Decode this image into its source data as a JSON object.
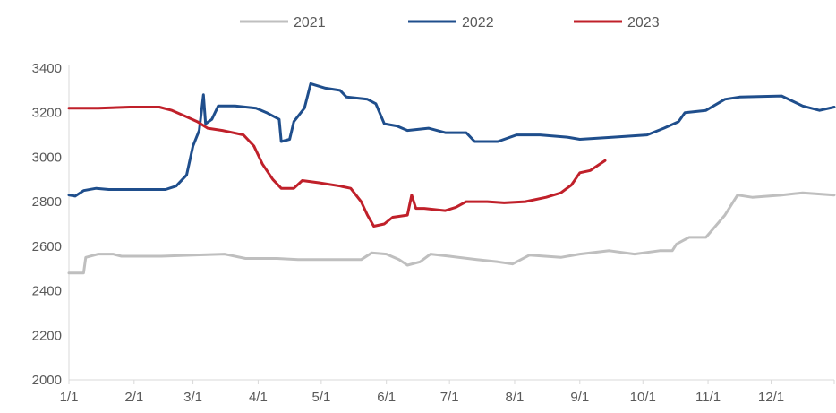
{
  "chart_data": {
    "type": "line",
    "title": "",
    "xlabel": "",
    "ylabel": "",
    "ylim": [
      2000,
      3400
    ],
    "yticks": [
      2000,
      2200,
      2400,
      2600,
      2800,
      3000,
      3200,
      3400
    ],
    "xlim": [
      "1/1",
      "12/31"
    ],
    "xticks": [
      {
        "label": "1/1",
        "day": 1
      },
      {
        "label": "2/1",
        "day": 32
      },
      {
        "label": "3/1",
        "day": 60
      },
      {
        "label": "4/1",
        "day": 91
      },
      {
        "label": "5/1",
        "day": 121
      },
      {
        "label": "6/1",
        "day": 152
      },
      {
        "label": "7/1",
        "day": 182
      },
      {
        "label": "8/1",
        "day": 213
      },
      {
        "label": "9/1",
        "day": 244
      },
      {
        "label": "10/1",
        "day": 274
      },
      {
        "label": "11/1",
        "day": 305
      },
      {
        "label": "12/1",
        "day": 335
      }
    ],
    "grid": false,
    "legend_position": "top-center",
    "series": [
      {
        "name": "2021",
        "color": "#bfbfbf",
        "points": [
          {
            "day": 1,
            "value": 2480
          },
          {
            "day": 8,
            "value": 2480
          },
          {
            "day": 9,
            "value": 2550
          },
          {
            "day": 15,
            "value": 2565
          },
          {
            "day": 22,
            "value": 2565
          },
          {
            "day": 26,
            "value": 2555
          },
          {
            "day": 45,
            "value": 2555
          },
          {
            "day": 60,
            "value": 2560
          },
          {
            "day": 75,
            "value": 2565
          },
          {
            "day": 85,
            "value": 2545
          },
          {
            "day": 100,
            "value": 2545
          },
          {
            "day": 110,
            "value": 2540
          },
          {
            "day": 125,
            "value": 2540
          },
          {
            "day": 140,
            "value": 2540
          },
          {
            "day": 145,
            "value": 2570
          },
          {
            "day": 152,
            "value": 2565
          },
          {
            "day": 158,
            "value": 2540
          },
          {
            "day": 162,
            "value": 2515
          },
          {
            "day": 168,
            "value": 2530
          },
          {
            "day": 173,
            "value": 2565
          },
          {
            "day": 182,
            "value": 2555
          },
          {
            "day": 195,
            "value": 2540
          },
          {
            "day": 205,
            "value": 2530
          },
          {
            "day": 212,
            "value": 2520
          },
          {
            "day": 220,
            "value": 2560
          },
          {
            "day": 235,
            "value": 2550
          },
          {
            "day": 244,
            "value": 2565
          },
          {
            "day": 258,
            "value": 2580
          },
          {
            "day": 270,
            "value": 2565
          },
          {
            "day": 282,
            "value": 2580
          },
          {
            "day": 288,
            "value": 2580
          },
          {
            "day": 290,
            "value": 2610
          },
          {
            "day": 296,
            "value": 2640
          },
          {
            "day": 304,
            "value": 2640
          },
          {
            "day": 313,
            "value": 2740
          },
          {
            "day": 319,
            "value": 2830
          },
          {
            "day": 326,
            "value": 2820
          },
          {
            "day": 340,
            "value": 2830
          },
          {
            "day": 350,
            "value": 2840
          },
          {
            "day": 365,
            "value": 2830
          }
        ]
      },
      {
        "name": "2022",
        "color": "#1f4e8c",
        "points": [
          {
            "day": 1,
            "value": 2830
          },
          {
            "day": 4,
            "value": 2825
          },
          {
            "day": 8,
            "value": 2850
          },
          {
            "day": 14,
            "value": 2860
          },
          {
            "day": 20,
            "value": 2855
          },
          {
            "day": 47,
            "value": 2855
          },
          {
            "day": 52,
            "value": 2870
          },
          {
            "day": 57,
            "value": 2920
          },
          {
            "day": 60,
            "value": 3050
          },
          {
            "day": 63,
            "value": 3120
          },
          {
            "day": 65,
            "value": 3280
          },
          {
            "day": 66,
            "value": 3150
          },
          {
            "day": 69,
            "value": 3170
          },
          {
            "day": 72,
            "value": 3230
          },
          {
            "day": 80,
            "value": 3230
          },
          {
            "day": 90,
            "value": 3220
          },
          {
            "day": 95,
            "value": 3200
          },
          {
            "day": 101,
            "value": 3170
          },
          {
            "day": 102,
            "value": 3070
          },
          {
            "day": 106,
            "value": 3080
          },
          {
            "day": 108,
            "value": 3160
          },
          {
            "day": 113,
            "value": 3220
          },
          {
            "day": 116,
            "value": 3330
          },
          {
            "day": 123,
            "value": 3310
          },
          {
            "day": 130,
            "value": 3300
          },
          {
            "day": 133,
            "value": 3270
          },
          {
            "day": 143,
            "value": 3260
          },
          {
            "day": 147,
            "value": 3240
          },
          {
            "day": 151,
            "value": 3150
          },
          {
            "day": 157,
            "value": 3140
          },
          {
            "day": 162,
            "value": 3120
          },
          {
            "day": 172,
            "value": 3130
          },
          {
            "day": 180,
            "value": 3110
          },
          {
            "day": 190,
            "value": 3110
          },
          {
            "day": 194,
            "value": 3070
          },
          {
            "day": 205,
            "value": 3070
          },
          {
            "day": 214,
            "value": 3100
          },
          {
            "day": 225,
            "value": 3100
          },
          {
            "day": 238,
            "value": 3090
          },
          {
            "day": 244,
            "value": 3080
          },
          {
            "day": 260,
            "value": 3090
          },
          {
            "day": 276,
            "value": 3100
          },
          {
            "day": 284,
            "value": 3130
          },
          {
            "day": 291,
            "value": 3160
          },
          {
            "day": 294,
            "value": 3200
          },
          {
            "day": 304,
            "value": 3210
          },
          {
            "day": 313,
            "value": 3260
          },
          {
            "day": 320,
            "value": 3270
          },
          {
            "day": 340,
            "value": 3275
          },
          {
            "day": 350,
            "value": 3230
          },
          {
            "day": 358,
            "value": 3210
          },
          {
            "day": 365,
            "value": 3225
          }
        ]
      },
      {
        "name": "2023",
        "color": "#c0202a",
        "points": [
          {
            "day": 1,
            "value": 3220
          },
          {
            "day": 15,
            "value": 3220
          },
          {
            "day": 30,
            "value": 3225
          },
          {
            "day": 44,
            "value": 3225
          },
          {
            "day": 50,
            "value": 3210
          },
          {
            "day": 56,
            "value": 3185
          },
          {
            "day": 62,
            "value": 3160
          },
          {
            "day": 67,
            "value": 3130
          },
          {
            "day": 74,
            "value": 3120
          },
          {
            "day": 84,
            "value": 3100
          },
          {
            "day": 89,
            "value": 3050
          },
          {
            "day": 93,
            "value": 2970
          },
          {
            "day": 98,
            "value": 2900
          },
          {
            "day": 102,
            "value": 2860
          },
          {
            "day": 108,
            "value": 2860
          },
          {
            "day": 112,
            "value": 2895
          },
          {
            "day": 120,
            "value": 2885
          },
          {
            "day": 130,
            "value": 2870
          },
          {
            "day": 135,
            "value": 2860
          },
          {
            "day": 140,
            "value": 2800
          },
          {
            "day": 143,
            "value": 2740
          },
          {
            "day": 146,
            "value": 2690
          },
          {
            "day": 151,
            "value": 2700
          },
          {
            "day": 155,
            "value": 2730
          },
          {
            "day": 162,
            "value": 2740
          },
          {
            "day": 164,
            "value": 2830
          },
          {
            "day": 166,
            "value": 2770
          },
          {
            "day": 170,
            "value": 2770
          },
          {
            "day": 180,
            "value": 2760
          },
          {
            "day": 185,
            "value": 2775
          },
          {
            "day": 190,
            "value": 2800
          },
          {
            "day": 200,
            "value": 2800
          },
          {
            "day": 208,
            "value": 2795
          },
          {
            "day": 218,
            "value": 2800
          },
          {
            "day": 228,
            "value": 2820
          },
          {
            "day": 235,
            "value": 2840
          },
          {
            "day": 240,
            "value": 2875
          },
          {
            "day": 244,
            "value": 2930
          },
          {
            "day": 249,
            "value": 2940
          },
          {
            "day": 256,
            "value": 2985
          }
        ]
      }
    ]
  }
}
